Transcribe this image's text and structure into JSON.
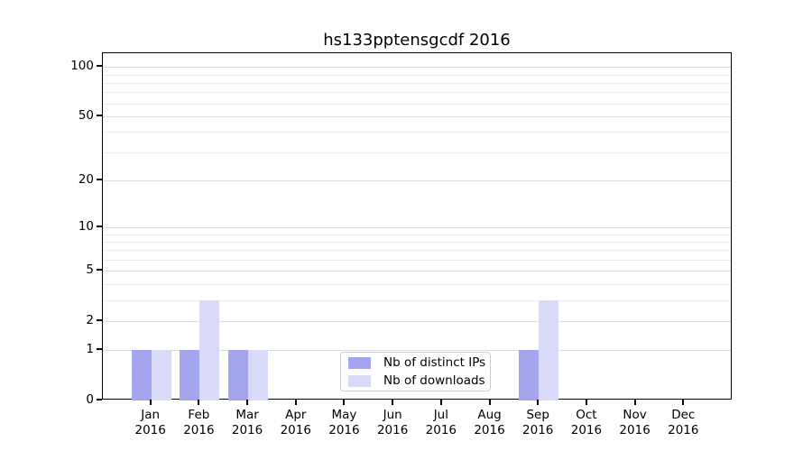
{
  "title": "hs133pptensgcdf 2016",
  "chart_data": {
    "type": "bar",
    "title": "hs133pptensgcdf 2016",
    "categories": [
      "Jan 2016",
      "Feb 2016",
      "Mar 2016",
      "Apr 2016",
      "May 2016",
      "Jun 2016",
      "Jul 2016",
      "Aug 2016",
      "Sep 2016",
      "Oct 2016",
      "Nov 2016",
      "Dec 2016"
    ],
    "series": [
      {
        "name": "Nb of distinct IPs",
        "color": "#a4a4ef",
        "values": [
          1,
          1,
          1,
          0,
          0,
          0,
          0,
          0,
          1,
          0,
          0,
          0
        ]
      },
      {
        "name": "Nb of downloads",
        "color": "#d9d9f8",
        "values": [
          1,
          3,
          1,
          0,
          0,
          0,
          0,
          0,
          3,
          0,
          0,
          0
        ]
      }
    ],
    "yscale": "log10(1+value)",
    "y_major_ticks": [
      0,
      1,
      2,
      5,
      10,
      20,
      50,
      100
    ],
    "y_minor_gridlines": [
      3,
      4,
      6,
      7,
      8,
      9,
      30,
      40,
      60,
      70,
      80,
      90
    ],
    "ylim": [
      0,
      120
    ],
    "xlabel": "",
    "ylabel": "",
    "grid": true,
    "legend_position": "lower center"
  }
}
